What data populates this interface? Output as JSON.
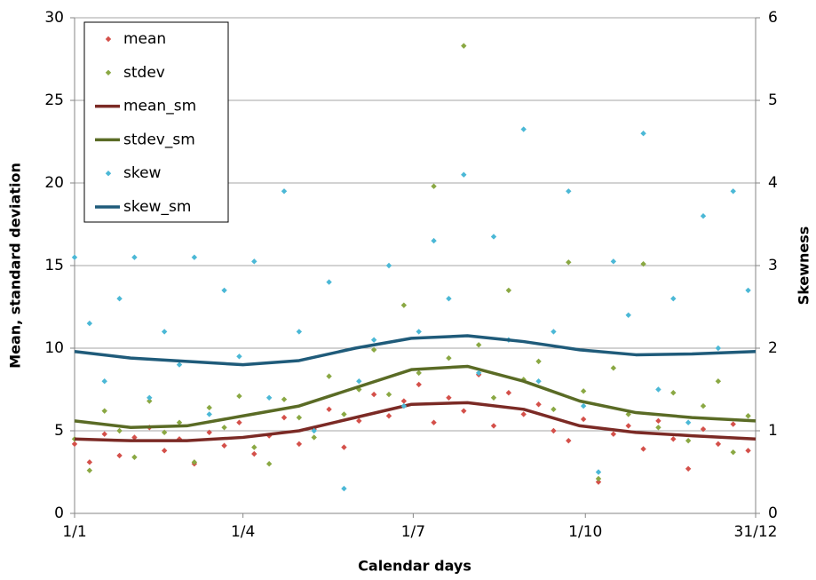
{
  "chart_data": {
    "type": "scatter",
    "x_label": "Calendar days",
    "y_label": "Mean, standard deviation",
    "y2_label": "Skewness",
    "xlim": [
      1,
      365
    ],
    "xticks": [
      {
        "value": 1,
        "label": "1/1"
      },
      {
        "value": 91,
        "label": "1/4"
      },
      {
        "value": 182,
        "label": "1/7"
      },
      {
        "value": 274,
        "label": "1/10"
      },
      {
        "value": 365,
        "label": "31/12"
      }
    ],
    "ylim": [
      0,
      30
    ],
    "yticks": [
      0,
      5,
      10,
      15,
      20,
      25,
      30
    ],
    "y2lim": [
      0,
      6
    ],
    "y2ticks": [
      0,
      1,
      2,
      3,
      4,
      5,
      6
    ],
    "grid": true,
    "legend": "upper left",
    "series": [
      {
        "name": "mean",
        "color": "#d4504a",
        "style": "marker",
        "x": [
          1,
          9,
          17,
          25,
          33,
          41,
          49,
          57,
          65,
          73,
          81,
          89,
          97,
          105,
          113,
          121,
          129,
          137,
          145,
          153,
          161,
          169,
          177,
          185,
          193,
          201,
          209,
          217,
          225,
          233,
          241,
          249,
          257,
          265,
          273,
          281,
          289,
          297,
          305,
          313,
          321,
          329,
          337,
          345,
          353,
          361
        ],
        "values": [
          4.2,
          3.1,
          4.8,
          3.5,
          4.6,
          5.2,
          3.8,
          4.5,
          3.0,
          4.9,
          4.1,
          5.5,
          3.6,
          4.7,
          5.8,
          4.2,
          5.1,
          6.3,
          4.0,
          5.6,
          7.2,
          5.9,
          6.8,
          7.8,
          5.5,
          7.0,
          6.2,
          8.4,
          5.3,
          7.3,
          6.0,
          6.6,
          5.0,
          4.4,
          5.7,
          1.9,
          4.8,
          5.3,
          3.9,
          5.6,
          4.5,
          2.7,
          5.1,
          4.2,
          5.4,
          3.8
        ]
      },
      {
        "name": "stdev",
        "color": "#8aa843",
        "style": "marker",
        "x": [
          1,
          9,
          17,
          25,
          33,
          41,
          49,
          57,
          65,
          73,
          81,
          89,
          97,
          105,
          113,
          121,
          129,
          137,
          145,
          153,
          161,
          169,
          177,
          185,
          193,
          201,
          209,
          217,
          225,
          233,
          241,
          249,
          257,
          265,
          273,
          281,
          289,
          297,
          305,
          313,
          321,
          329,
          337,
          345,
          353,
          361
        ],
        "values": [
          4.5,
          2.6,
          6.2,
          5.0,
          3.4,
          6.8,
          4.9,
          5.5,
          3.1,
          6.4,
          5.2,
          7.1,
          4.0,
          3.0,
          6.9,
          5.8,
          4.6,
          8.3,
          6.0,
          7.5,
          9.9,
          7.2,
          12.6,
          8.5,
          19.8,
          9.4,
          28.3,
          10.2,
          7.0,
          13.5,
          8.1,
          9.2,
          6.3,
          15.2,
          7.4,
          2.1,
          8.8,
          6.0,
          15.1,
          5.2,
          7.3,
          4.4,
          6.5,
          8.0,
          3.7,
          5.9
        ]
      },
      {
        "name": "mean_sm",
        "color": "#7b2a25",
        "style": "line",
        "x": [
          1,
          31,
          61,
          91,
          121,
          151,
          181,
          211,
          241,
          271,
          301,
          331,
          365
        ],
        "values": [
          4.5,
          4.4,
          4.4,
          4.6,
          5.0,
          5.8,
          6.6,
          6.7,
          6.3,
          5.3,
          4.9,
          4.7,
          4.5
        ]
      },
      {
        "name": "stdev_sm",
        "color": "#5a6b25",
        "style": "line",
        "x": [
          1,
          31,
          61,
          91,
          121,
          151,
          181,
          211,
          241,
          271,
          301,
          331,
          365
        ],
        "values": [
          5.6,
          5.2,
          5.3,
          5.9,
          6.5,
          7.6,
          8.7,
          8.9,
          8.0,
          6.8,
          6.1,
          5.8,
          5.6
        ]
      },
      {
        "name": "skew",
        "color": "#4bb8d6",
        "style": "marker",
        "axis": "y2",
        "x": [
          1,
          9,
          17,
          25,
          33,
          41,
          49,
          57,
          65,
          73,
          81,
          89,
          97,
          105,
          113,
          121,
          129,
          137,
          145,
          153,
          161,
          169,
          177,
          185,
          193,
          201,
          209,
          217,
          225,
          233,
          241,
          249,
          257,
          265,
          273,
          281,
          289,
          297,
          305,
          313,
          321,
          329,
          337,
          345,
          353,
          361
        ],
        "values": [
          3.1,
          2.3,
          1.6,
          2.6,
          3.1,
          1.4,
          2.2,
          1.8,
          3.1,
          1.2,
          2.7,
          1.9,
          3.05,
          1.4,
          3.9,
          2.2,
          1.0,
          2.8,
          0.3,
          1.6,
          2.1,
          3.0,
          1.3,
          2.2,
          3.3,
          2.6,
          4.1,
          1.7,
          3.35,
          2.1,
          4.65,
          1.6,
          2.2,
          3.9,
          1.3,
          0.5,
          3.05,
          2.4,
          4.6,
          1.5,
          2.6,
          1.1,
          3.6,
          2.0,
          3.9,
          2.7
        ]
      },
      {
        "name": "skew_sm",
        "color": "#1f5b7a",
        "style": "line",
        "axis": "y2",
        "x": [
          1,
          31,
          61,
          91,
          121,
          151,
          181,
          211,
          241,
          271,
          301,
          331,
          365
        ],
        "values": [
          1.96,
          1.88,
          1.84,
          1.8,
          1.85,
          2.0,
          2.12,
          2.15,
          2.08,
          1.98,
          1.92,
          1.93,
          1.96
        ]
      }
    ]
  }
}
